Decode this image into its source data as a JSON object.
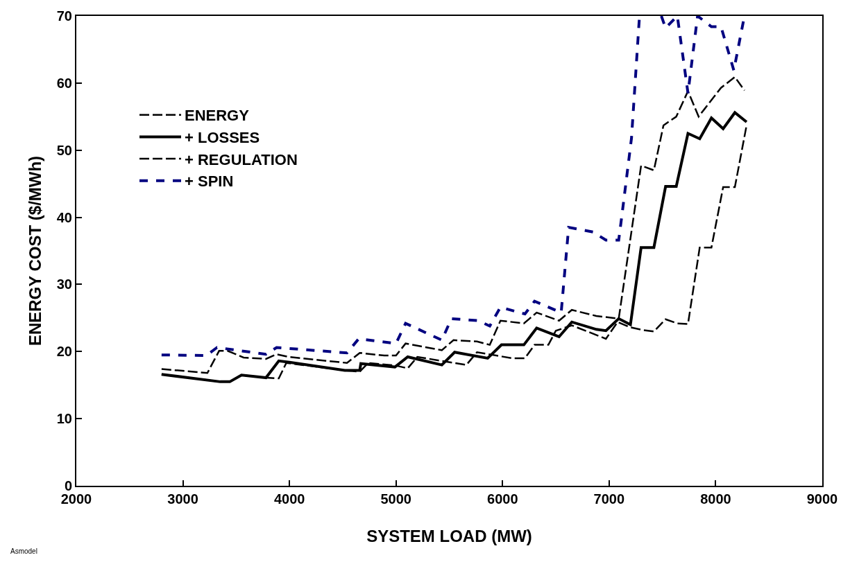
{
  "chart_data": {
    "type": "line",
    "xlabel": "SYSTEM LOAD (MW)",
    "ylabel": "ENERGY COST ($/MWh)",
    "xlim": [
      2000,
      9000
    ],
    "xticks": [
      2000,
      3000,
      4000,
      5000,
      6000,
      7000,
      8000,
      9000
    ],
    "ylim": [
      0,
      70
    ],
    "yticks": [
      0,
      10,
      20,
      30,
      40,
      50,
      60,
      70
    ],
    "legend": "top left",
    "marker": "none",
    "annotations": [
      "Asmodel"
    ],
    "series": [
      {
        "name": "ENERGY",
        "color": "#000000",
        "line_style": "dashed",
        "x": [
          2800,
          3350,
          3440,
          3550,
          3780,
          3900,
          3970,
          4520,
          4660,
          4740,
          5000,
          5110,
          5200,
          5660,
          5760,
          6090,
          6210,
          6300,
          6430,
          6500,
          6650,
          6970,
          7080,
          7200,
          7320,
          7420,
          7530,
          7640,
          7740,
          7850,
          7960,
          8070,
          8180,
          8290
        ],
        "values": [
          16.6,
          15.5,
          15.5,
          16.5,
          16.1,
          16.0,
          18.3,
          17.2,
          17.0,
          18.3,
          17.9,
          17.5,
          19.2,
          18.0,
          19.9,
          19.0,
          19.0,
          21.0,
          21.0,
          23.1,
          23.9,
          21.9,
          24.4,
          23.6,
          23.2,
          23.0,
          24.8,
          24.2,
          24.1,
          35.5,
          35.5,
          44.5,
          44.5,
          53.7
        ]
      },
      {
        "name": "+ LOSSES",
        "color": "#000000",
        "line_style": "solid",
        "x": [
          2800,
          3350,
          3440,
          3550,
          3780,
          3900,
          4000,
          4520,
          4660,
          4670,
          4990,
          5110,
          5430,
          5550,
          5860,
          5990,
          6200,
          6320,
          6530,
          6650,
          6880,
          6970,
          7090,
          7200,
          7300,
          7420,
          7530,
          7630,
          7740,
          7850,
          7960,
          8070,
          8180,
          8290
        ],
        "values": [
          16.6,
          15.5,
          15.5,
          16.5,
          16.1,
          18.6,
          18.4,
          17.2,
          17.2,
          18.2,
          17.7,
          19.2,
          18.0,
          19.9,
          19.0,
          21.0,
          21.0,
          23.5,
          22.2,
          24.4,
          23.3,
          23.1,
          24.9,
          24.0,
          35.5,
          35.5,
          44.6,
          44.6,
          52.5,
          51.7,
          54.8,
          53.2,
          55.6,
          54.2
        ]
      },
      {
        "name": "+ REGULATION",
        "color": "#000000",
        "line_style": "dashed",
        "x": [
          2800,
          3230,
          3300,
          3340,
          3420,
          3570,
          3780,
          3880,
          3990,
          4540,
          4660,
          4890,
          5000,
          5090,
          5430,
          5540,
          5760,
          5880,
          5980,
          6200,
          6320,
          6530,
          6650,
          6880,
          7090,
          7300,
          7420,
          7510,
          7630,
          7740,
          7840,
          8050,
          8180,
          8270
        ],
        "values": [
          17.4,
          16.8,
          18.9,
          20.1,
          20.1,
          19.1,
          18.9,
          19.6,
          19.2,
          18.3,
          19.8,
          19.4,
          19.4,
          21.2,
          20.2,
          21.7,
          21.5,
          21.0,
          24.6,
          24.2,
          25.8,
          24.6,
          26.2,
          25.3,
          24.9,
          47.7,
          47.0,
          53.7,
          55.0,
          58.8,
          55.0,
          59.3,
          60.9,
          58.9
        ]
      },
      {
        "name": "+ SPIN",
        "color": "#000080",
        "line_style": "dotted",
        "x": [
          2800,
          3220,
          3320,
          3780,
          3880,
          4540,
          4650,
          5000,
          5090,
          5430,
          5520,
          5770,
          5880,
          5980,
          6210,
          6300,
          6550,
          6620,
          6850,
          6970,
          7090,
          7120,
          7210,
          7285,
          7400,
          7490,
          7530,
          7640,
          7740,
          7830,
          7960,
          8050,
          8170,
          8270
        ],
        "values": [
          19.5,
          19.4,
          20.6,
          19.6,
          20.6,
          19.8,
          21.9,
          21.2,
          24.2,
          21.7,
          24.9,
          24.6,
          23.8,
          26.6,
          25.6,
          27.5,
          25.8,
          38.5,
          37.8,
          36.6,
          36.6,
          40.3,
          51.8,
          70,
          null,
          70,
          68.2,
          70,
          58.5,
          70,
          68.4,
          68.4,
          61.9,
          70
        ]
      }
    ]
  }
}
